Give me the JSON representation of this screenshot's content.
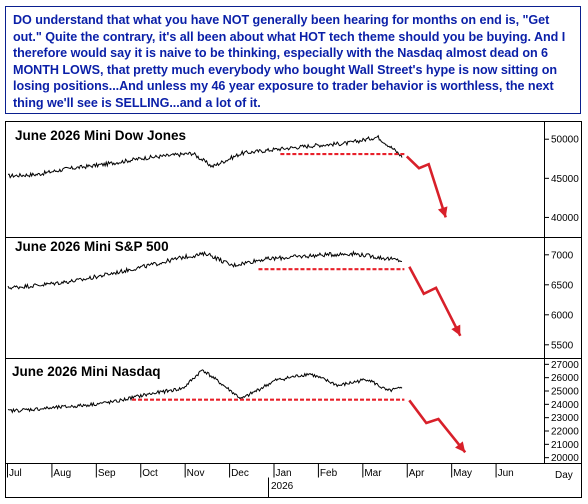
{
  "commentary": "DO understand that what you have NOT generally been hearing for months on end is, \"Get out.\" Quite the contrary, it's all been about what HOT tech theme should you be buying. And I therefore would say it is naive to be thinking, especially with the Nasdaq almost dead on 6 MONTH LOWS, that pretty much everybody who bought Wall Street's hype is now sitting on losing positions...And unless my 46 year exposure to trader behavior is worthless, the next thing we'll see is SELLING...and a lot of it.",
  "colors": {
    "text": "#0a1fa8",
    "support": "#e8202a",
    "arrow": "#d8202a",
    "price": "#000000"
  },
  "chart_data": [
    {
      "type": "line",
      "title": "June 2026 Mini Dow Jones",
      "y_ticks": [
        40000,
        45000,
        50000
      ],
      "ylim": [
        37500,
        52200
      ],
      "x_range": [
        0,
        11
      ],
      "trend": [
        [
          0,
          45300
        ],
        [
          0.6,
          45500
        ],
        [
          1.2,
          46200
        ],
        [
          2,
          46800
        ],
        [
          2.8,
          47600
        ],
        [
          3.8,
          48200
        ],
        [
          4.2,
          46500
        ],
        [
          4.8,
          48200
        ],
        [
          5.5,
          48700
        ],
        [
          6.3,
          49200
        ],
        [
          7,
          49500
        ],
        [
          7.6,
          50300
        ],
        [
          7.95,
          48600
        ],
        [
          8.1,
          47800
        ]
      ],
      "support": {
        "value": 48100,
        "x_start": 5.6,
        "x_end": 8.15
      },
      "projection": [
        [
          8.2,
          47800
        ],
        [
          8.45,
          46300
        ],
        [
          8.65,
          46800
        ],
        [
          9.0,
          40000
        ]
      ]
    },
    {
      "type": "line",
      "title": "June 2026 Mini S&P 500",
      "y_ticks": [
        5500,
        6000,
        6500,
        7000
      ],
      "ylim": [
        5280,
        7280
      ],
      "x_range": [
        0,
        11
      ],
      "trend": [
        [
          0,
          6450
        ],
        [
          0.7,
          6500
        ],
        [
          1.5,
          6580
        ],
        [
          2.2,
          6700
        ],
        [
          3.0,
          6840
        ],
        [
          3.6,
          6960
        ],
        [
          4.1,
          7020
        ],
        [
          4.6,
          6820
        ],
        [
          5.2,
          6920
        ],
        [
          5.8,
          6960
        ],
        [
          6.5,
          7000
        ],
        [
          7.1,
          7020
        ],
        [
          7.6,
          6960
        ],
        [
          8.1,
          6900
        ]
      ],
      "support": {
        "value": 6760,
        "x_start": 5.15,
        "x_end": 8.15
      },
      "projection": [
        [
          8.25,
          6800
        ],
        [
          8.55,
          6350
        ],
        [
          8.8,
          6450
        ],
        [
          9.3,
          5650
        ]
      ]
    },
    {
      "type": "line",
      "title": "June 2026 Mini Nasdaq",
      "y_ticks": [
        20000,
        21000,
        22000,
        23000,
        24000,
        25000,
        26000,
        27000
      ],
      "ylim": [
        19600,
        27400
      ],
      "x_range": [
        0,
        11
      ],
      "trend": [
        [
          0,
          23500
        ],
        [
          0.8,
          23700
        ],
        [
          1.5,
          23900
        ],
        [
          2.2,
          24200
        ],
        [
          2.8,
          24700
        ],
        [
          3.6,
          25200
        ],
        [
          4.0,
          26600
        ],
        [
          4.4,
          25500
        ],
        [
          4.8,
          24400
        ],
        [
          5.5,
          25800
        ],
        [
          6.2,
          26300
        ],
        [
          6.8,
          25400
        ],
        [
          7.4,
          25900
        ],
        [
          7.8,
          25000
        ],
        [
          8.1,
          25200
        ]
      ],
      "support": {
        "value": 24350,
        "x_start": 2.55,
        "x_end": 8.15
      },
      "projection": [
        [
          8.25,
          24300
        ],
        [
          8.6,
          22600
        ],
        [
          8.85,
          22900
        ],
        [
          9.4,
          20400
        ]
      ]
    }
  ],
  "x_axis": {
    "months": [
      "Jul",
      "Aug",
      "Sep",
      "Oct",
      "Nov",
      "Dec",
      "Jan",
      "Feb",
      "Mar",
      "Apr",
      "May",
      "Jun"
    ],
    "year_label": "2026",
    "year_after_index": 6,
    "axis_label": "Day"
  }
}
